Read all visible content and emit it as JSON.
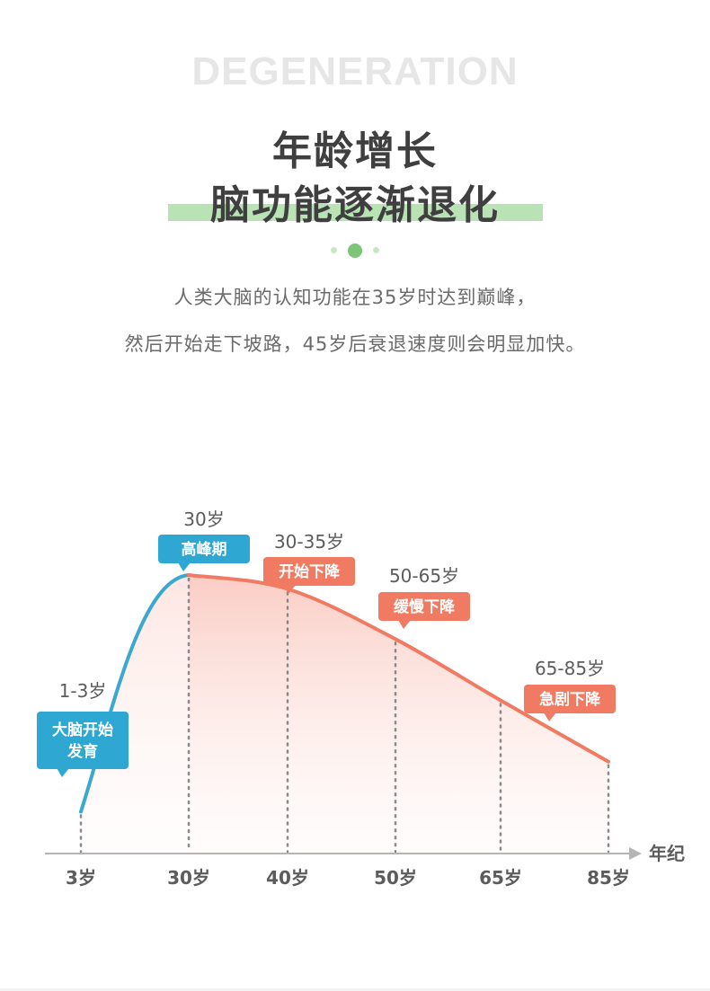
{
  "header": {
    "bg_title": "DEGENERATION",
    "headline_line1": "年龄增长",
    "headline_line2": "脑功能逐渐退化",
    "desc_line1": "人类大脑的认知功能在35岁时达到巅峰，",
    "desc_line2": "然后开始走下坡路，45岁后衰退速度则会明显加快。"
  },
  "colors": {
    "rising_line": "#3aa8cf",
    "falling_line": "#f07a62",
    "badge_blue": "#2ea8d2",
    "badge_orange": "#f07a62",
    "highlight_green": "#b9e2b5",
    "dot_active": "#7cc576"
  },
  "chart_data": {
    "type": "area",
    "x_axis_title": "年纪",
    "x_tick_labels": [
      "3岁",
      "30岁",
      "40岁",
      "50岁",
      "65岁",
      "85岁"
    ],
    "curve_rise": [
      {
        "x": "3岁",
        "y": 15
      },
      {
        "x": "30岁",
        "y": 100
      }
    ],
    "curve_fall": [
      {
        "x": "30岁",
        "y": 100
      },
      {
        "x": "40岁",
        "y": 95
      },
      {
        "x": "50岁",
        "y": 77
      },
      {
        "x": "65岁",
        "y": 55
      },
      {
        "x": "85岁",
        "y": 33
      }
    ],
    "annotations": [
      {
        "age": "1-3岁",
        "stage": "大脑开始\n发育",
        "color": "blue"
      },
      {
        "age": "30岁",
        "stage": "高峰期",
        "color": "blue"
      },
      {
        "age": "30-35岁",
        "stage": "开始下降",
        "color": "orange"
      },
      {
        "age": "50-65岁",
        "stage": "缓慢下降",
        "color": "orange"
      },
      {
        "age": "65-85岁",
        "stage": "急剧下降",
        "color": "orange"
      }
    ],
    "grid": false,
    "legend": "none"
  }
}
